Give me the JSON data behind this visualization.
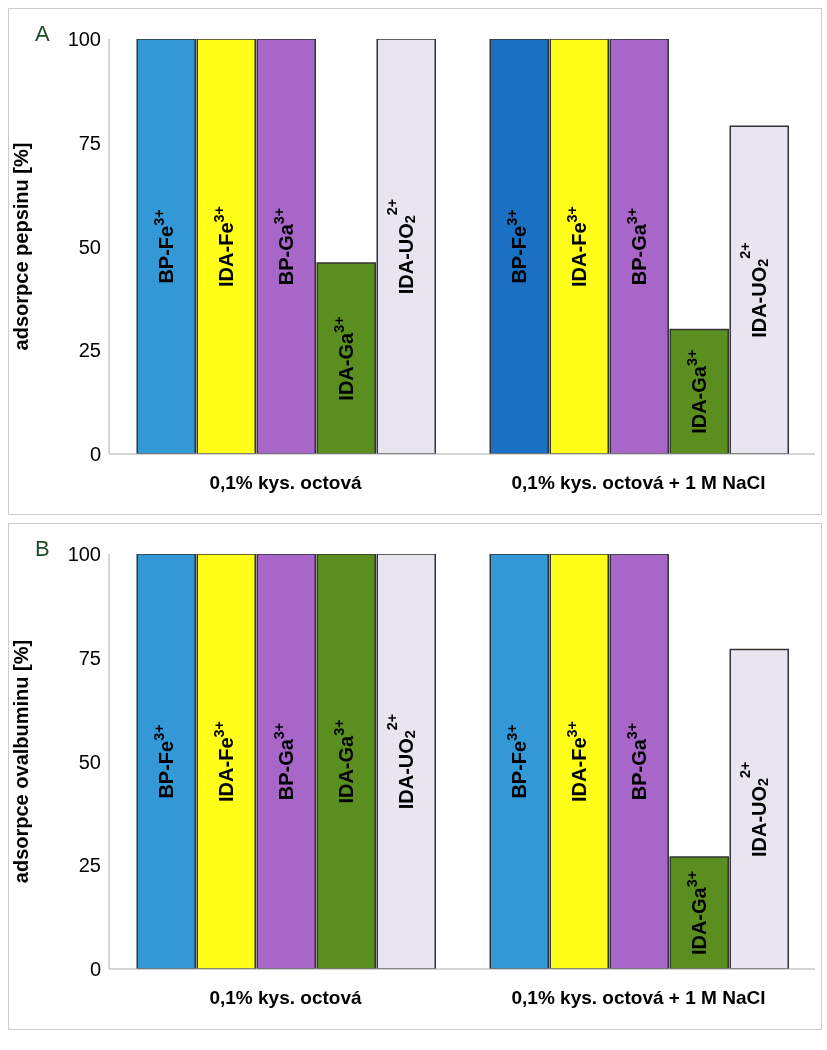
{
  "chart_data": [
    {
      "type": "bar",
      "title": "A",
      "ylabel": "adsorpce pepsinu [%]",
      "categories": [
        "0,1% kys. octová",
        "0,1% kys. octová + 1 M NaCl"
      ],
      "ylim": [
        0,
        100
      ],
      "yticks": [
        0,
        25,
        50,
        75,
        100
      ],
      "grid": false,
      "series": [
        {
          "name": "BP-Fe$^{3+}$",
          "color": "#3399d6",
          "colors": [
            "#3399d6",
            "#1a70c2"
          ],
          "values": [
            100,
            100
          ]
        },
        {
          "name": "IDA-Fe$^{3+}$",
          "color": "#ffff1a",
          "values": [
            100,
            100
          ]
        },
        {
          "name": "BP-Ga$^{3+}$",
          "color": "#a866c8",
          "values": [
            100,
            100
          ]
        },
        {
          "name": "IDA-Ga$^{3+}$",
          "color": "#5a8e1e",
          "values": [
            46,
            30
          ]
        },
        {
          "name": "IDA-UO$_{2}$$^{2+}$",
          "color": "#e8e4f0",
          "values": [
            100,
            79
          ]
        }
      ]
    },
    {
      "type": "bar",
      "title": "B",
      "ylabel": "adsorpce ovalbuminu [%]",
      "categories": [
        "0,1% kys. octová",
        "0,1% kys. octová + 1 M NaCl"
      ],
      "ylim": [
        0,
        100
      ],
      "yticks": [
        0,
        25,
        50,
        75,
        100
      ],
      "grid": false,
      "series": [
        {
          "name": "BP-Fe$^{3+}$",
          "color": "#3399d6",
          "values": [
            100,
            100
          ]
        },
        {
          "name": "IDA-Fe$^{3+}$",
          "color": "#ffff1a",
          "values": [
            100,
            100
          ]
        },
        {
          "name": "BP-Ga$^{3+}$",
          "color": "#a866c8",
          "values": [
            100,
            100
          ]
        },
        {
          "name": "IDA-Ga$^{3+}$",
          "color": "#5a8e1e",
          "values": [
            100,
            27
          ]
        },
        {
          "name": "IDA-UO$_{2}$$^{2+}$",
          "color": "#e8e4f0",
          "values": [
            100,
            77
          ]
        }
      ]
    }
  ]
}
